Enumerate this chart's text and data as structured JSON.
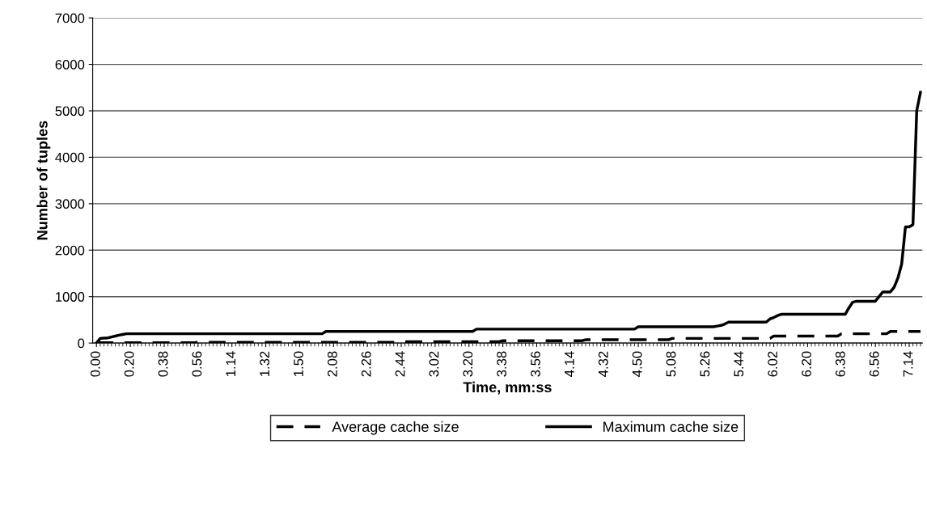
{
  "chart_data": {
    "type": "line",
    "xlabel": "Time, mm:ss",
    "ylabel": "Number of tuples",
    "ylim": [
      0,
      7000
    ],
    "yticks": [
      0,
      1000,
      2000,
      3000,
      4000,
      5000,
      6000,
      7000
    ],
    "categories": [
      "0.00",
      null,
      null,
      null,
      null,
      null,
      null,
      null,
      null,
      "0.20",
      null,
      null,
      null,
      null,
      null,
      null,
      null,
      null,
      "0.38",
      null,
      null,
      null,
      null,
      null,
      null,
      null,
      null,
      "0.56",
      null,
      null,
      null,
      null,
      null,
      null,
      null,
      null,
      "1.14",
      null,
      null,
      null,
      null,
      null,
      null,
      null,
      null,
      "1.32",
      null,
      null,
      null,
      null,
      null,
      null,
      null,
      null,
      "1.50",
      null,
      null,
      null,
      null,
      null,
      null,
      null,
      null,
      "2.08",
      null,
      null,
      null,
      null,
      null,
      null,
      null,
      null,
      "2.26",
      null,
      null,
      null,
      null,
      null,
      null,
      null,
      null,
      "2.44",
      null,
      null,
      null,
      null,
      null,
      null,
      null,
      null,
      "3.02",
      null,
      null,
      null,
      null,
      null,
      null,
      null,
      null,
      "3.20",
      null,
      null,
      null,
      null,
      null,
      null,
      null,
      null,
      "3.38",
      null,
      null,
      null,
      null,
      null,
      null,
      null,
      null,
      "3.56",
      null,
      null,
      null,
      null,
      null,
      null,
      null,
      null,
      "4.14",
      null,
      null,
      null,
      null,
      null,
      null,
      null,
      null,
      "4.32",
      null,
      null,
      null,
      null,
      null,
      null,
      null,
      null,
      "4.50",
      null,
      null,
      null,
      null,
      null,
      null,
      null,
      null,
      "5.08",
      null,
      null,
      null,
      null,
      null,
      null,
      null,
      null,
      "5.26",
      null,
      null,
      null,
      null,
      null,
      null,
      null,
      null,
      "5.44",
      null,
      null,
      null,
      null,
      null,
      null,
      null,
      null,
      "6.02",
      null,
      null,
      null,
      null,
      null,
      null,
      null,
      null,
      "6.20",
      null,
      null,
      null,
      null,
      null,
      null,
      null,
      null,
      "6.38",
      null,
      null,
      null,
      null,
      null,
      null,
      null,
      null,
      "6.56",
      null,
      null,
      null,
      null,
      null,
      null,
      null,
      null,
      "7.14",
      null,
      null,
      null
    ],
    "grid": "y",
    "legend": "bottom",
    "marker": "none",
    "series": [
      {
        "name": "Average cache size",
        "color": "#000000",
        "line_style": "dashed",
        "values": [
          0,
          5,
          5,
          5,
          5,
          5,
          5,
          5,
          5,
          5,
          5,
          5,
          5,
          5,
          5,
          5,
          5,
          5,
          5,
          5,
          5,
          5,
          5,
          5,
          5,
          5,
          5,
          15,
          15,
          15,
          15,
          15,
          15,
          15,
          15,
          15,
          15,
          15,
          15,
          15,
          15,
          15,
          15,
          15,
          15,
          15,
          15,
          15,
          15,
          15,
          15,
          15,
          15,
          15,
          15,
          15,
          15,
          15,
          15,
          15,
          15,
          15,
          15,
          15,
          15,
          15,
          15,
          15,
          15,
          15,
          15,
          15,
          15,
          15,
          15,
          15,
          15,
          15,
          15,
          15,
          15,
          30,
          30,
          30,
          30,
          30,
          30,
          30,
          30,
          30,
          30,
          30,
          30,
          30,
          30,
          30,
          30,
          30,
          30,
          30,
          30,
          30,
          30,
          30,
          30,
          30,
          30,
          30,
          50,
          50,
          50,
          50,
          50,
          50,
          50,
          50,
          50,
          50,
          50,
          50,
          50,
          50,
          50,
          50,
          50,
          50,
          50,
          50,
          50,
          50,
          70,
          70,
          70,
          70,
          70,
          70,
          70,
          70,
          70,
          70,
          70,
          70,
          70,
          70,
          70,
          70,
          70,
          70,
          70,
          70,
          70,
          70,
          70,
          100,
          100,
          100,
          100,
          100,
          100,
          100,
          100,
          100,
          100,
          100,
          100,
          100,
          100,
          100,
          100,
          100,
          100,
          100,
          100,
          100,
          100,
          100,
          100,
          100,
          100,
          100,
          150,
          150,
          150,
          150,
          150,
          150,
          150,
          150,
          150,
          150,
          150,
          150,
          150,
          150,
          150,
          150,
          150,
          150,
          200,
          200,
          200,
          200,
          200,
          200,
          200,
          200,
          200,
          200,
          200,
          200,
          200,
          250,
          250,
          250,
          250,
          250,
          250,
          250,
          250,
          250
        ]
      },
      {
        "name": "Maximum cache size",
        "color": "#000000",
        "line_style": "solid",
        "values": [
          0,
          100,
          105,
          110,
          130,
          150,
          170,
          185,
          200,
          200,
          200,
          200,
          200,
          200,
          200,
          200,
          200,
          200,
          200,
          200,
          200,
          200,
          200,
          200,
          200,
          200,
          200,
          200,
          200,
          200,
          200,
          200,
          200,
          200,
          200,
          200,
          200,
          200,
          200,
          200,
          200,
          200,
          200,
          200,
          200,
          200,
          200,
          200,
          200,
          200,
          200,
          200,
          200,
          200,
          200,
          200,
          200,
          200,
          200,
          200,
          200,
          250,
          250,
          250,
          250,
          250,
          250,
          250,
          250,
          250,
          250,
          250,
          250,
          250,
          250,
          250,
          250,
          250,
          250,
          250,
          250,
          250,
          250,
          250,
          250,
          250,
          250,
          250,
          250,
          250,
          250,
          250,
          250,
          250,
          250,
          250,
          250,
          250,
          250,
          250,
          250,
          300,
          300,
          300,
          300,
          300,
          300,
          300,
          300,
          300,
          300,
          300,
          300,
          300,
          300,
          300,
          300,
          300,
          300,
          300,
          300,
          300,
          300,
          300,
          300,
          300,
          300,
          300,
          300,
          300,
          300,
          300,
          300,
          300,
          300,
          300,
          300,
          300,
          300,
          300,
          300,
          300,
          300,
          300,
          350,
          350,
          350,
          350,
          350,
          350,
          350,
          350,
          350,
          350,
          350,
          350,
          350,
          350,
          350,
          350,
          350,
          350,
          350,
          350,
          350,
          365,
          380,
          410,
          450,
          450,
          450,
          450,
          450,
          450,
          450,
          450,
          450,
          450,
          450,
          520,
          550,
          590,
          620,
          620,
          620,
          620,
          620,
          620,
          620,
          620,
          620,
          620,
          620,
          620,
          620,
          620,
          620,
          620,
          620,
          620,
          760,
          880,
          900,
          900,
          900,
          900,
          900,
          900,
          1000,
          1100,
          1100,
          1100,
          1200,
          1400,
          1700,
          2500,
          2500,
          2550,
          5000,
          5400
        ]
      }
    ]
  }
}
